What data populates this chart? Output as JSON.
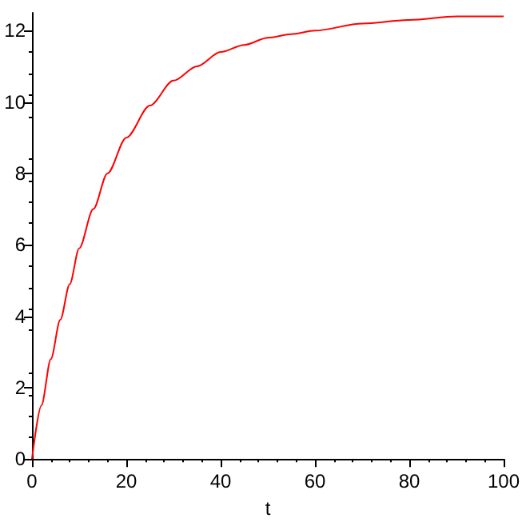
{
  "chart_data": {
    "type": "line",
    "xlabel": "t",
    "x": [
      0,
      2,
      4,
      6,
      8,
      10,
      13,
      16,
      20,
      25,
      30,
      35,
      40,
      45,
      50,
      55,
      60,
      70,
      80,
      90,
      100
    ],
    "series": [
      {
        "color": "#ff0000",
        "values": [
          0,
          1.5,
          2.8,
          3.9,
          4.9,
          5.9,
          7.0,
          8.0,
          9.0,
          9.9,
          10.6,
          11.0,
          11.4,
          11.6,
          11.8,
          11.9,
          12.0,
          12.2,
          12.3,
          12.4,
          12.4
        ]
      }
    ],
    "xlim": [
      0,
      100
    ],
    "xticks": [
      0,
      20,
      40,
      60,
      80,
      100
    ],
    "ylim": [
      0,
      12.5
    ],
    "yticks": [
      0,
      2,
      4,
      6,
      8,
      10,
      12
    ],
    "grid": false
  }
}
